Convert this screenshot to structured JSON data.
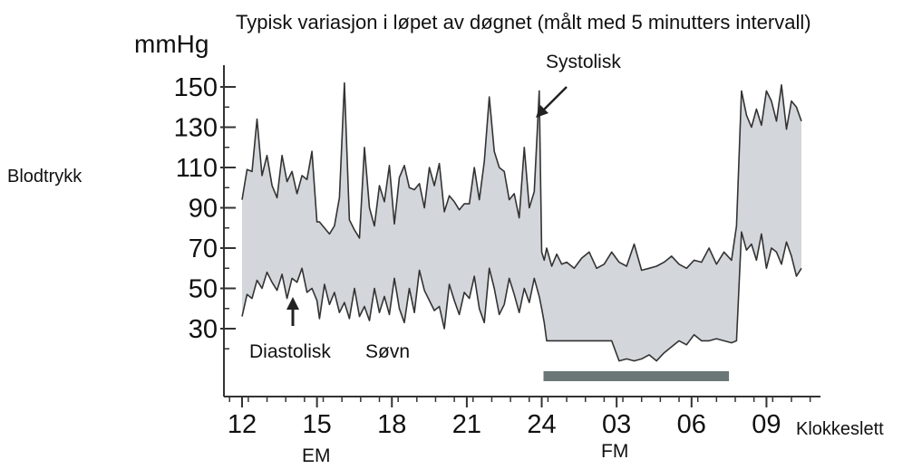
{
  "chart_data": {
    "type": "area",
    "title": "Typisk variasjon i løpet av døgnet (målt med 5 minutters intervall)",
    "ylabel": "Blodtrykk",
    "yunit": "mmHg",
    "xlabel": "Klokkeslett",
    "yticks": [
      "150",
      "130",
      "110",
      "90",
      "70",
      "50",
      "30"
    ],
    "ylim": [
      10,
      160
    ],
    "xticks": [
      "12",
      "15",
      "18",
      "21",
      "24",
      "03",
      "06",
      "09"
    ],
    "xlim": [
      12,
      35
    ],
    "period_labels": [
      "EM",
      "FM"
    ],
    "annotations": {
      "systolic": "Systolisk",
      "diastolic": "Diastolisk",
      "sleep": "Søvn"
    },
    "sleep_interval": [
      24,
      31.5
    ],
    "colors": {
      "band": "#d3d6da",
      "line": "#333333",
      "sleep_bar": "#6b7677"
    },
    "series": [
      {
        "name": "Systolisk",
        "x": [
          12.0,
          12.2,
          12.4,
          12.6,
          12.8,
          13.0,
          13.2,
          13.4,
          13.6,
          13.8,
          14.0,
          14.2,
          14.4,
          14.6,
          14.8,
          15.0,
          15.1,
          15.3,
          15.5,
          15.7,
          15.9,
          16.1,
          16.3,
          16.5,
          16.7,
          16.9,
          17.1,
          17.3,
          17.5,
          17.7,
          17.9,
          18.1,
          18.3,
          18.5,
          18.7,
          18.9,
          19.1,
          19.3,
          19.5,
          19.7,
          19.9,
          20.1,
          20.3,
          20.5,
          20.7,
          20.9,
          21.1,
          21.3,
          21.5,
          21.7,
          21.9,
          22.1,
          22.3,
          22.5,
          22.7,
          22.9,
          23.1,
          23.3,
          23.5,
          23.7,
          23.9,
          24.0,
          24.1,
          24.2,
          24.4,
          24.6,
          24.8,
          25.0,
          25.3,
          25.6,
          25.9,
          26.2,
          26.5,
          26.8,
          27.1,
          27.4,
          27.7,
          28.0,
          28.3,
          28.6,
          28.9,
          29.2,
          29.5,
          29.8,
          30.1,
          30.4,
          30.7,
          31.0,
          31.3,
          31.6,
          31.8,
          32.0,
          32.2,
          32.4,
          32.6,
          32.8,
          33.0,
          33.2,
          33.4,
          33.6,
          33.8,
          34.0,
          34.2,
          34.4
        ],
        "values": [
          94,
          109,
          108,
          134,
          106,
          116,
          101,
          95,
          116,
          103,
          108,
          97,
          106,
          104,
          118,
          83,
          83,
          80,
          77,
          81,
          95,
          152,
          84,
          79,
          75,
          120,
          90,
          81,
          101,
          93,
          111,
          82,
          105,
          111,
          100,
          99,
          102,
          90,
          110,
          101,
          112,
          88,
          96,
          93,
          89,
          92,
          92,
          110,
          94,
          113,
          145,
          118,
          110,
          108,
          94,
          97,
          85,
          120,
          90,
          98,
          148,
          68,
          64,
          70,
          61,
          67,
          62,
          63,
          60,
          65,
          68,
          60,
          62,
          68,
          63,
          61,
          72,
          59,
          60,
          61,
          63,
          66,
          62,
          60,
          64,
          63,
          70,
          62,
          68,
          64,
          81,
          148,
          136,
          130,
          139,
          131,
          148,
          143,
          133,
          151,
          129,
          143,
          140,
          133
        ],
        "color": "#333333"
      },
      {
        "name": "Diastolisk",
        "x": [
          12.0,
          12.2,
          12.4,
          12.6,
          12.8,
          13.0,
          13.2,
          13.4,
          13.6,
          13.8,
          14.0,
          14.2,
          14.4,
          14.6,
          14.8,
          15.0,
          15.1,
          15.3,
          15.5,
          15.7,
          15.9,
          16.1,
          16.3,
          16.5,
          16.7,
          16.9,
          17.1,
          17.3,
          17.5,
          17.7,
          17.9,
          18.1,
          18.3,
          18.5,
          18.7,
          18.9,
          19.1,
          19.3,
          19.5,
          19.7,
          19.9,
          20.1,
          20.3,
          20.5,
          20.7,
          20.9,
          21.1,
          21.3,
          21.5,
          21.7,
          21.9,
          22.1,
          22.3,
          22.5,
          22.7,
          22.9,
          23.1,
          23.3,
          23.5,
          23.7,
          23.9,
          24.0,
          24.1,
          24.2,
          24.4,
          24.6,
          24.8,
          25.0,
          25.3,
          25.6,
          25.9,
          26.2,
          26.5,
          26.8,
          27.1,
          27.4,
          27.7,
          28.0,
          28.3,
          28.6,
          28.9,
          29.2,
          29.5,
          29.8,
          30.1,
          30.4,
          30.7,
          31.0,
          31.3,
          31.6,
          31.8,
          32.0,
          32.2,
          32.4,
          32.6,
          32.8,
          33.0,
          33.2,
          33.4,
          33.6,
          33.8,
          34.0,
          34.2,
          34.4
        ],
        "values": [
          36,
          47,
          45,
          54,
          50,
          58,
          53,
          49,
          57,
          45,
          55,
          53,
          60,
          48,
          50,
          44,
          35,
          52,
          42,
          48,
          38,
          43,
          35,
          50,
          36,
          41,
          34,
          50,
          38,
          46,
          37,
          55,
          40,
          33,
          50,
          38,
          59,
          49,
          44,
          39,
          41,
          30,
          52,
          44,
          37,
          48,
          45,
          56,
          40,
          33,
          60,
          50,
          37,
          42,
          55,
          47,
          38,
          50,
          43,
          55,
          46,
          40,
          33,
          24,
          24,
          24,
          24,
          24,
          24,
          24,
          24,
          24,
          24,
          24,
          14,
          15,
          14,
          15,
          17,
          14,
          18,
          21,
          24,
          22,
          27,
          24,
          24,
          25,
          24,
          23,
          24,
          78,
          69,
          72,
          64,
          77,
          60,
          70,
          68,
          62,
          73,
          66,
          56,
          60
        ],
        "color": "#333333"
      }
    ]
  }
}
